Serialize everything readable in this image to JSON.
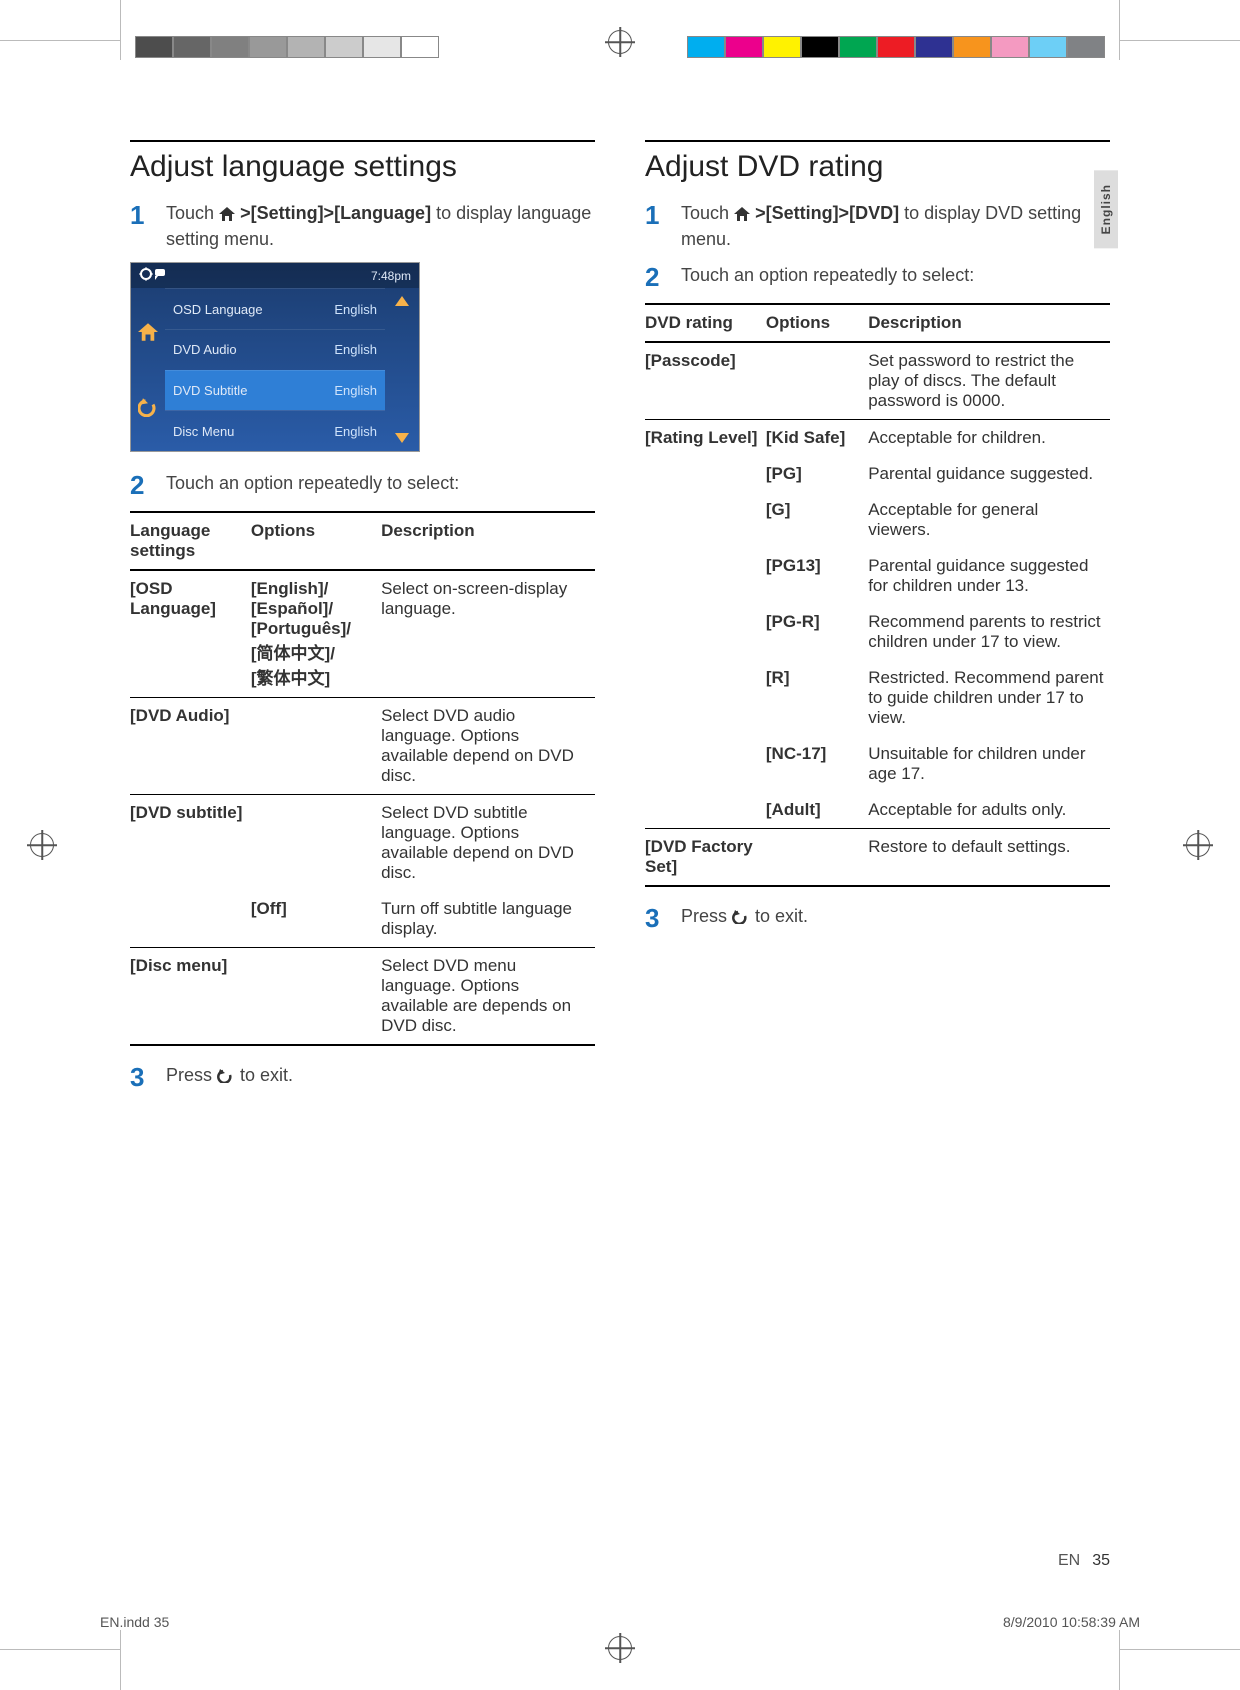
{
  "print": {
    "footer_left": "EN.indd   35",
    "footer_right": "8/9/2010   10:58:39 AM",
    "grayscale_left": [
      "#4d4d4d",
      "#666666",
      "#808080",
      "#999999",
      "#b3b3b3",
      "#cccccc",
      "#e6e6e6",
      "#ffffff"
    ],
    "color_bar_right": [
      "#00aeef",
      "#ec008c",
      "#fff200",
      "#000000",
      "#00a651",
      "#ed1c24",
      "#2e3192",
      "#f7941d",
      "#f49ac1",
      "#6dcff6",
      "#808285"
    ]
  },
  "side_tab": "English",
  "left": {
    "title": "Adjust language settings",
    "steps": [
      {
        "num": "1",
        "before": "Touch ",
        "path": ">[Setting]>[Language]",
        "after": " to display language setting menu."
      },
      {
        "num": "2",
        "text": "Touch an option repeatedly to select:"
      },
      {
        "num": "3",
        "before": "Press ",
        "after": " to exit."
      }
    ],
    "menu": {
      "time": "7:48pm",
      "rows": [
        {
          "label": "OSD Language",
          "value": "English",
          "selected": false
        },
        {
          "label": "DVD Audio",
          "value": "English",
          "selected": false
        },
        {
          "label": "DVD Subtitle",
          "value": "English",
          "selected": true
        },
        {
          "label": "Disc Menu",
          "value": "English",
          "selected": false
        }
      ]
    },
    "table": {
      "headers": [
        "Language settings",
        "Options",
        "Description"
      ],
      "rows": [
        {
          "c1": "[OSD Language]",
          "c2": "[English]/\n[Español]/\n[Português]/\n[简体中文]/\n[繁体中文]",
          "c3": "Select on-screen-display language."
        },
        {
          "c1": "[DVD Audio]",
          "c2": "",
          "c3": "Select DVD audio language. Options available depend on DVD disc."
        },
        {
          "c1": "[DVD subtitle]",
          "c2": "",
          "c3": "Select DVD subtitle language. Options available depend on DVD disc."
        },
        {
          "c1": "",
          "c2": "[Off]",
          "c3": "Turn off subtitle language display.",
          "notop": true
        },
        {
          "c1": "[Disc menu]",
          "c2": "",
          "c3": "Select DVD menu language. Options available are depends on DVD disc."
        }
      ]
    }
  },
  "right": {
    "title": "Adjust DVD rating",
    "steps": [
      {
        "num": "1",
        "before": "Touch ",
        "path": ">[Setting]>[DVD]",
        "after": " to display DVD setting menu."
      },
      {
        "num": "2",
        "text": "Touch an option repeatedly to select:"
      },
      {
        "num": "3",
        "before": "Press ",
        "after": " to exit."
      }
    ],
    "table": {
      "headers": [
        "DVD rating",
        "Options",
        "Description"
      ],
      "rows": [
        {
          "c1": "[Passcode]",
          "c2": "",
          "c3": "Set password to restrict the play of discs. The default password is 0000."
        },
        {
          "c1": "[Rating Level]",
          "c2": "[Kid Safe]",
          "c3": "Acceptable for children."
        },
        {
          "c1": "",
          "c2": "[PG]",
          "c3": "Parental guidance suggested.",
          "notop": true
        },
        {
          "c1": "",
          "c2": "[G]",
          "c3": "Acceptable for general viewers.",
          "notop": true
        },
        {
          "c1": "",
          "c2": "[PG13]",
          "c3": "Parental guidance suggested for children under 13.",
          "notop": true
        },
        {
          "c1": "",
          "c2": "[PG-R]",
          "c3": "Recommend parents to restrict children under 17 to view.",
          "notop": true
        },
        {
          "c1": "",
          "c2": "[R]",
          "c3": "Restricted. Recommend parent to guide children under 17 to view.",
          "notop": true
        },
        {
          "c1": "",
          "c2": "[NC-17]",
          "c3": "Unsuitable for children under age 17.",
          "notop": true
        },
        {
          "c1": "",
          "c2": "[Adult]",
          "c3": "Acceptable for adults only.",
          "notop": true
        },
        {
          "c1": "[DVD Factory Set]",
          "c2": "",
          "c3": "Restore to default settings."
        }
      ]
    }
  },
  "footer": {
    "lang": "EN",
    "page": "35"
  }
}
